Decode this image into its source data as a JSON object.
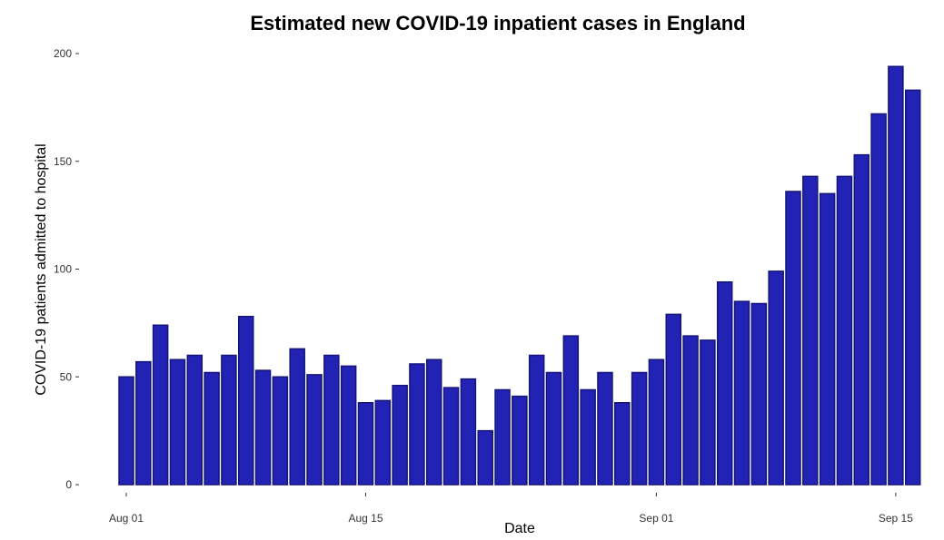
{
  "chart_data": {
    "type": "bar",
    "title": "Estimated new COVID-19 inpatient cases in England",
    "xlabel": "Date",
    "ylabel": "COVID-19 patients admitted to hospital",
    "ylim": [
      0,
      200
    ],
    "yticks": [
      0,
      50,
      100,
      150,
      200
    ],
    "xticks": [
      {
        "label": "Aug 01",
        "index": 0
      },
      {
        "label": "Aug 15",
        "index": 14
      },
      {
        "label": "Sep 01",
        "index": 31
      },
      {
        "label": "Sep 15",
        "index": 45
      }
    ],
    "grid": false,
    "bar_color": "#2222b4",
    "bar_edge_color": "#15157a",
    "categories": [
      "Aug 01",
      "Aug 02",
      "Aug 03",
      "Aug 04",
      "Aug 05",
      "Aug 06",
      "Aug 07",
      "Aug 08",
      "Aug 09",
      "Aug 10",
      "Aug 11",
      "Aug 12",
      "Aug 13",
      "Aug 14",
      "Aug 15",
      "Aug 16",
      "Aug 17",
      "Aug 18",
      "Aug 19",
      "Aug 20",
      "Aug 21",
      "Aug 22",
      "Aug 23",
      "Aug 24",
      "Aug 25",
      "Aug 26",
      "Aug 27",
      "Aug 28",
      "Aug 29",
      "Aug 30",
      "Aug 31",
      "Sep 01",
      "Sep 02",
      "Sep 03",
      "Sep 04",
      "Sep 05",
      "Sep 06",
      "Sep 07",
      "Sep 08",
      "Sep 09",
      "Sep 10",
      "Sep 11",
      "Sep 12",
      "Sep 13",
      "Sep 14",
      "Sep 15",
      "Sep 16"
    ],
    "values": [
      50,
      57,
      74,
      58,
      60,
      52,
      60,
      78,
      53,
      50,
      63,
      51,
      60,
      55,
      38,
      39,
      46,
      56,
      58,
      45,
      49,
      25,
      44,
      41,
      60,
      52,
      69,
      44,
      52,
      38,
      52,
      58,
      79,
      69,
      67,
      94,
      85,
      84,
      99,
      136,
      143,
      135,
      143,
      153,
      172,
      194,
      183
    ]
  }
}
